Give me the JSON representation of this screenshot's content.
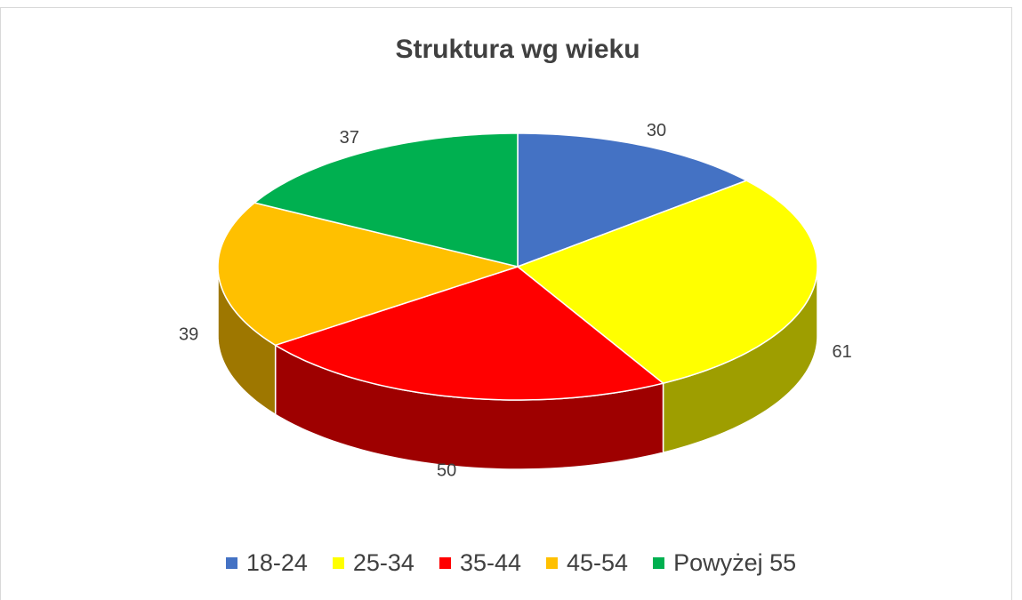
{
  "chart_data": {
    "type": "pie3d",
    "title": "Struktura wg wieku",
    "categories": [
      "18-24",
      "25-34",
      "35-44",
      "45-54",
      "Powyżej 55"
    ],
    "values": [
      30,
      61,
      50,
      39,
      37
    ],
    "colors": [
      "#4472c4",
      "#ffff00",
      "#ff0000",
      "#ffc000",
      "#00b050"
    ],
    "legend": "bottom"
  }
}
